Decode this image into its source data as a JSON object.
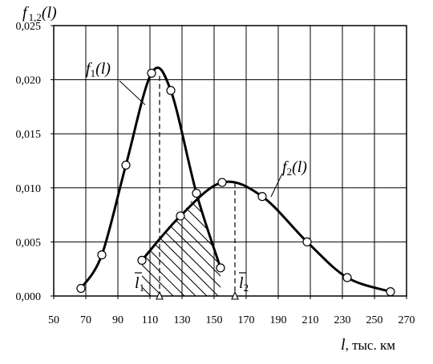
{
  "chart_data": {
    "type": "line",
    "ylabel_main": "f",
    "ylabel_sub": "1,2",
    "ylabel_arg": "(l)",
    "xlabel_var": "l",
    "xlabel_unit": ", тыс. км",
    "xlim": [
      50,
      270
    ],
    "ylim": [
      0,
      0.025
    ],
    "x_ticks": [
      50,
      70,
      90,
      110,
      130,
      150,
      170,
      190,
      210,
      230,
      250,
      270
    ],
    "y_ticks": [
      0,
      0.005,
      0.01,
      0.015,
      0.02,
      0.025
    ],
    "y_tick_labels": [
      "0,000",
      "0,005",
      "0,010",
      "0,015",
      "0,020",
      "0,025"
    ],
    "grid": true,
    "series": [
      {
        "name": "f1(l)",
        "label_main": "f",
        "label_sub": "1",
        "label_arg": "(l)",
        "points": [
          [
            67,
            0.0007
          ],
          [
            80,
            0.0038
          ],
          [
            95,
            0.0121
          ],
          [
            111,
            0.0206
          ],
          [
            123,
            0.019
          ],
          [
            139,
            0.0095
          ],
          [
            154,
            0.0026
          ]
        ]
      },
      {
        "name": "f2(l)",
        "label_main": "f",
        "label_sub": "2",
        "label_arg": "(l)",
        "points": [
          [
            105,
            0.0033
          ],
          [
            129,
            0.0074
          ],
          [
            155,
            0.0105
          ],
          [
            180,
            0.0092
          ],
          [
            208,
            0.005
          ],
          [
            233,
            0.0017
          ],
          [
            260,
            0.0004
          ]
        ]
      }
    ],
    "annotations": {
      "mean1": {
        "x": 116,
        "label": "l",
        "sub": "1"
      },
      "mean2": {
        "x": 163,
        "label": "l",
        "sub": "2"
      }
    }
  }
}
